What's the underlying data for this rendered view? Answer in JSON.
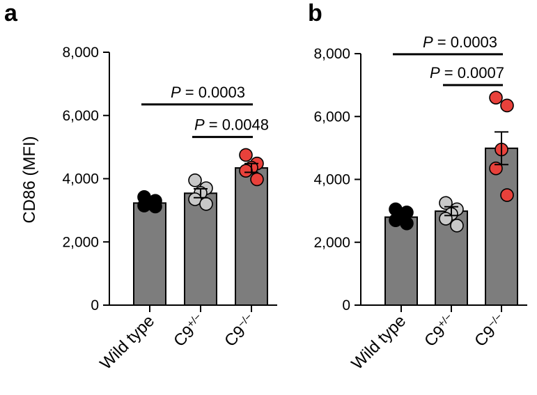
{
  "figure": {
    "panels": [
      "a",
      "b"
    ]
  },
  "chart_data": [
    {
      "panel": "a",
      "type": "bar",
      "ylabel": "CD86 (MFI)",
      "ylim": [
        0,
        8000
      ],
      "yticks": [
        0,
        2000,
        4000,
        6000,
        8000
      ],
      "ytick_labels": [
        "0",
        "2,000",
        "4,000",
        "6,000",
        "8,000"
      ],
      "categories": [
        {
          "base": "Wild type",
          "sup": ""
        },
        {
          "base": "C9",
          "sup": "+/−"
        },
        {
          "base": "C9",
          "sup": "−/−"
        }
      ],
      "values": [
        3230,
        3540,
        4340
      ],
      "errors": [
        90,
        140,
        140
      ],
      "points": [
        [
          3420,
          3300,
          3220,
          3150,
          3120
        ],
        [
          3950,
          3700,
          3550,
          3350,
          3200
        ],
        [
          4750,
          4480,
          4350,
          4250,
          3980
        ]
      ],
      "point_colors": [
        "#000000",
        "#c8c8c8",
        "#e8413b"
      ],
      "bar_color": "#7d7d7d",
      "comparisons": [
        {
          "from": 0,
          "to": 2,
          "y": 6350,
          "label_p": "P",
          "label_rest": " = 0.0003"
        },
        {
          "from": 1,
          "to": 2,
          "y": 5320,
          "label_p": "P",
          "label_rest": " = 0.0048"
        }
      ]
    },
    {
      "panel": "b",
      "type": "bar",
      "ylabel": "",
      "ylim": [
        0,
        8000
      ],
      "yticks": [
        0,
        2000,
        4000,
        6000,
        8000
      ],
      "ytick_labels": [
        "0",
        "2,000",
        "4,000",
        "6,000",
        "8,000"
      ],
      "categories": [
        {
          "base": "Wild type",
          "sup": ""
        },
        {
          "base": "C9",
          "sup": "+/−"
        },
        {
          "base": "C9",
          "sup": "−/−"
        }
      ],
      "values": [
        2800,
        2990,
        4990
      ],
      "errors": [
        90,
        140,
        520
      ],
      "points": [
        [
          3050,
          2950,
          2850,
          2700,
          2600
        ],
        [
          3250,
          3050,
          2900,
          2750,
          2530
        ],
        [
          6600,
          6350,
          4950,
          4350,
          3500
        ]
      ],
      "point_colors": [
        "#000000",
        "#c8c8c8",
        "#e8413b"
      ],
      "bar_color": "#7d7d7d",
      "comparisons": [
        {
          "from": 0,
          "to": 2,
          "y": 7980,
          "label_p": "P",
          "label_rest": " = 0.0003"
        },
        {
          "from": 1,
          "to": 2,
          "y": 7000,
          "label_p": "P",
          "label_rest": " = 0.0007"
        }
      ]
    }
  ]
}
